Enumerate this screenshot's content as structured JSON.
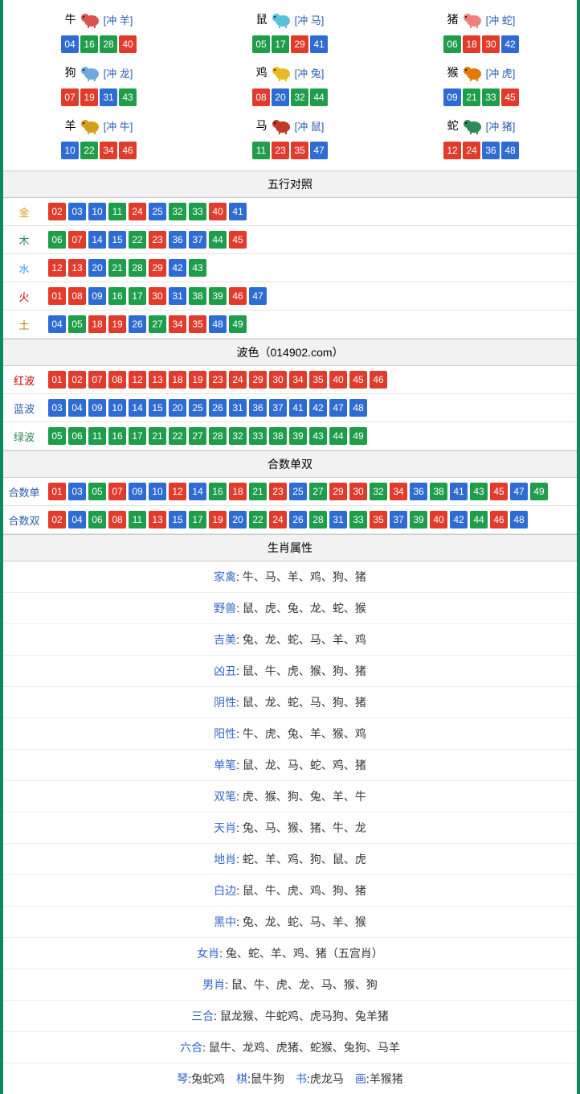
{
  "ball_colors": {
    "red": "#e13b2b",
    "blue": "#2e6cd3",
    "green": "#1e9e4a"
  },
  "zodiac_icon_colors": {
    "牛": "#d9534f",
    "鼠": "#5bc0de",
    "猪": "#f08080",
    "狗": "#6fa8dc",
    "鸡": "#e8b923",
    "猴": "#e07b00",
    "羊": "#d4a017",
    "马": "#c0392b",
    "蛇": "#2e8b57"
  },
  "ball_color_map": {
    "01": "red",
    "02": "red",
    "07": "red",
    "08": "red",
    "12": "red",
    "13": "red",
    "18": "red",
    "19": "red",
    "23": "red",
    "24": "red",
    "29": "red",
    "30": "red",
    "34": "red",
    "35": "red",
    "40": "red",
    "45": "red",
    "46": "red",
    "03": "blue",
    "04": "blue",
    "09": "blue",
    "10": "blue",
    "14": "blue",
    "15": "blue",
    "20": "blue",
    "25": "blue",
    "26": "blue",
    "31": "blue",
    "36": "blue",
    "37": "blue",
    "41": "blue",
    "42": "blue",
    "47": "blue",
    "48": "blue",
    "05": "green",
    "06": "green",
    "11": "green",
    "16": "green",
    "17": "green",
    "21": "green",
    "22": "green",
    "27": "green",
    "28": "green",
    "32": "green",
    "33": "green",
    "38": "green",
    "39": "green",
    "43": "green",
    "44": "green",
    "49": "green"
  },
  "zodiac": [
    {
      "name": "牛",
      "chong": "[冲 羊]",
      "nums": [
        "04",
        "16",
        "28",
        "40"
      ]
    },
    {
      "name": "鼠",
      "chong": "[冲 马]",
      "nums": [
        "05",
        "17",
        "29",
        "41"
      ]
    },
    {
      "name": "猪",
      "chong": "[冲 蛇]",
      "nums": [
        "06",
        "18",
        "30",
        "42"
      ]
    },
    {
      "name": "狗",
      "chong": "[冲 龙]",
      "nums": [
        "07",
        "19",
        "31",
        "43"
      ]
    },
    {
      "name": "鸡",
      "chong": "[冲 兔]",
      "nums": [
        "08",
        "20",
        "32",
        "44"
      ]
    },
    {
      "name": "猴",
      "chong": "[冲 虎]",
      "nums": [
        "09",
        "21",
        "33",
        "45"
      ]
    },
    {
      "name": "羊",
      "chong": "[冲 牛]",
      "nums": [
        "10",
        "22",
        "34",
        "46"
      ]
    },
    {
      "name": "马",
      "chong": "[冲 鼠]",
      "nums": [
        "11",
        "23",
        "35",
        "47"
      ]
    },
    {
      "name": "蛇",
      "chong": "[冲 猪]",
      "nums": [
        "12",
        "24",
        "36",
        "48"
      ]
    }
  ],
  "wuxing": {
    "title": "五行对照",
    "rows": [
      {
        "label": "金",
        "class": "c-gold",
        "nums": [
          "02",
          "03",
          "10",
          "11",
          "24",
          "25",
          "32",
          "33",
          "40",
          "41"
        ]
      },
      {
        "label": "木",
        "class": "c-wood",
        "nums": [
          "06",
          "07",
          "14",
          "15",
          "22",
          "23",
          "36",
          "37",
          "44",
          "45"
        ]
      },
      {
        "label": "水",
        "class": "c-water",
        "nums": [
          "12",
          "13",
          "20",
          "21",
          "28",
          "29",
          "42",
          "43"
        ]
      },
      {
        "label": "火",
        "class": "c-fire",
        "nums": [
          "01",
          "08",
          "09",
          "16",
          "17",
          "30",
          "31",
          "38",
          "39",
          "46",
          "47"
        ]
      },
      {
        "label": "土",
        "class": "c-earth",
        "nums": [
          "04",
          "05",
          "18",
          "19",
          "26",
          "27",
          "34",
          "35",
          "48",
          "49"
        ]
      }
    ]
  },
  "bose": {
    "title": "波色（014902.com）",
    "rows": [
      {
        "label": "红波",
        "class": "c-red",
        "nums": [
          "01",
          "02",
          "07",
          "08",
          "12",
          "13",
          "18",
          "19",
          "23",
          "24",
          "29",
          "30",
          "34",
          "35",
          "40",
          "45",
          "46"
        ]
      },
      {
        "label": "蓝波",
        "class": "c-blue",
        "nums": [
          "03",
          "04",
          "09",
          "10",
          "14",
          "15",
          "20",
          "25",
          "26",
          "31",
          "36",
          "37",
          "41",
          "42",
          "47",
          "48"
        ]
      },
      {
        "label": "绿波",
        "class": "c-green",
        "nums": [
          "05",
          "06",
          "11",
          "16",
          "17",
          "21",
          "22",
          "27",
          "28",
          "32",
          "33",
          "38",
          "39",
          "43",
          "44",
          "49"
        ]
      }
    ]
  },
  "heshu": {
    "title": "合数单双",
    "rows": [
      {
        "label": "合数单",
        "class": "c-blue",
        "nums": [
          "01",
          "03",
          "05",
          "07",
          "09",
          "10",
          "12",
          "14",
          "16",
          "18",
          "21",
          "23",
          "25",
          "27",
          "29",
          "30",
          "32",
          "34",
          "36",
          "38",
          "41",
          "43",
          "45",
          "47",
          "49"
        ]
      },
      {
        "label": "合数双",
        "class": "c-blue",
        "nums": [
          "02",
          "04",
          "06",
          "08",
          "11",
          "13",
          "15",
          "17",
          "19",
          "20",
          "22",
          "24",
          "26",
          "28",
          "31",
          "33",
          "35",
          "37",
          "39",
          "40",
          "42",
          "44",
          "46",
          "48"
        ]
      }
    ]
  },
  "attrs": {
    "title": "生肖属性",
    "rows": [
      {
        "label": "家禽",
        "val": "牛、马、羊、鸡、狗、猪"
      },
      {
        "label": "野兽",
        "val": "鼠、虎、兔、龙、蛇、猴"
      },
      {
        "label": "吉美",
        "val": "兔、龙、蛇、马、羊、鸡"
      },
      {
        "label": "凶丑",
        "val": "鼠、牛、虎、猴、狗、猪"
      },
      {
        "label": "阴性",
        "val": "鼠、龙、蛇、马、狗、猪"
      },
      {
        "label": "阳性",
        "val": "牛、虎、兔、羊、猴、鸡"
      },
      {
        "label": "单笔",
        "val": "鼠、龙、马、蛇、鸡、猪"
      },
      {
        "label": "双笔",
        "val": "虎、猴、狗、兔、羊、牛"
      },
      {
        "label": "天肖",
        "val": "兔、马、猴、猪、牛、龙"
      },
      {
        "label": "地肖",
        "val": "蛇、羊、鸡、狗、鼠、虎"
      },
      {
        "label": "白边",
        "val": "鼠、牛、虎、鸡、狗、猪"
      },
      {
        "label": "黑中",
        "val": "兔、龙、蛇、马、羊、猴"
      },
      {
        "label": "女肖",
        "val": "兔、蛇、羊、鸡、猪（五宫肖）"
      },
      {
        "label": "男肖",
        "val": "鼠、牛、虎、龙、马、猴、狗"
      },
      {
        "label": "三合",
        "val": "鼠龙猴、牛蛇鸡、虎马狗、兔羊猪"
      },
      {
        "label": "六合",
        "val": "鼠牛、龙鸡、虎猪、蛇猴、兔狗、马羊"
      }
    ],
    "bottom": [
      {
        "label": "琴",
        "val": "兔蛇鸡"
      },
      {
        "label": "棋",
        "val": "鼠牛狗"
      },
      {
        "label": "书",
        "val": "虎龙马"
      },
      {
        "label": "画",
        "val": "羊猴猪"
      }
    ]
  }
}
